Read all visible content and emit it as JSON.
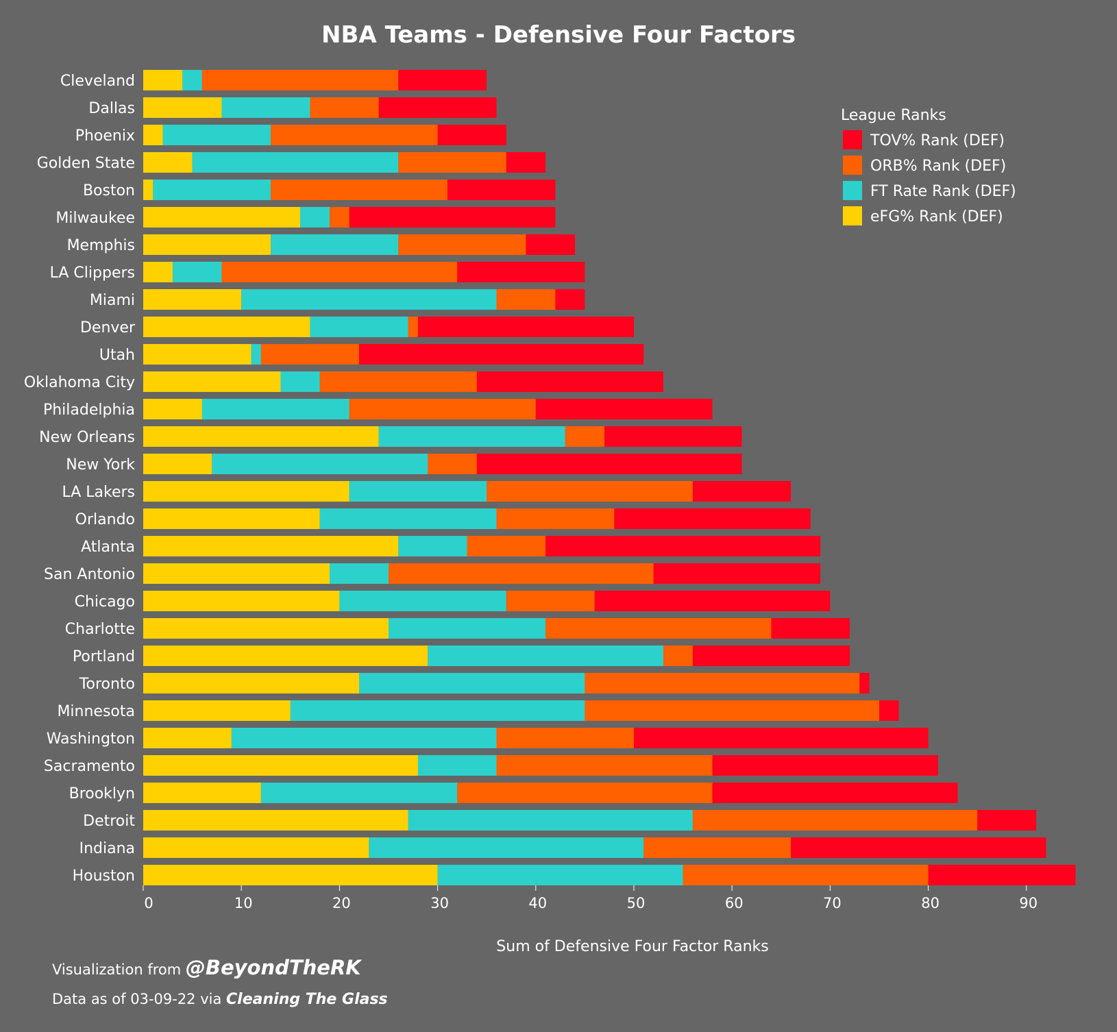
{
  "colors": {
    "background": "#666666",
    "tov": "#FF001E",
    "orb": "#FF6000",
    "ft": "#2DD1CC",
    "efg": "#FFD100"
  },
  "credits": {
    "line1_prefix": "Visualization from ",
    "line1_handle": "@BeyondTheRK",
    "line2_prefix": "Data as of 03-09-22 via ",
    "line2_source": "Cleaning The Glass"
  },
  "chart_data": {
    "type": "bar",
    "orientation": "horizontal",
    "stacked": true,
    "title": "NBA Teams - Defensive Four Factors",
    "xlabel": "Sum of Defensive Four Factor Ranks",
    "ylabel": "",
    "xlim": [
      0,
      95
    ],
    "xticks": [
      0,
      10,
      20,
      30,
      40,
      50,
      60,
      70,
      80,
      90
    ],
    "grid": false,
    "legend": {
      "title": "League Ranks",
      "position": "top-right",
      "entries": [
        "TOV% Rank (DEF)",
        "ORB% Rank (DEF)",
        "FT Rate Rank (DEF)",
        "eFG% Rank (DEF)"
      ]
    },
    "categories": [
      "Cleveland",
      "Dallas",
      "Phoenix",
      "Golden State",
      "Boston",
      "Milwaukee",
      "Memphis",
      "LA Clippers",
      "Miami",
      "Denver",
      "Utah",
      "Oklahoma City",
      "Philadelphia",
      "New Orleans",
      "New York",
      "LA Lakers",
      "Orlando",
      "Atlanta",
      "San Antonio",
      "Chicago",
      "Charlotte",
      "Portland",
      "Toronto",
      "Minnesota",
      "Washington",
      "Sacramento",
      "Brooklyn",
      "Detroit",
      "Indiana",
      "Houston"
    ],
    "series": [
      {
        "name": "eFG% Rank (DEF)",
        "color": "#FFD100",
        "values": [
          4,
          8,
          2,
          5,
          1,
          16,
          13,
          3,
          10,
          17,
          11,
          14,
          6,
          24,
          7,
          21,
          18,
          26,
          19,
          20,
          25,
          29,
          22,
          15,
          9,
          28,
          12,
          27,
          23,
          30
        ]
      },
      {
        "name": "FT Rate Rank (DEF)",
        "color": "#2DD1CC",
        "values": [
          2,
          9,
          11,
          21,
          12,
          3,
          13,
          5,
          26,
          10,
          1,
          4,
          15,
          19,
          22,
          14,
          18,
          7,
          6,
          17,
          16,
          24,
          23,
          30,
          27,
          8,
          20,
          29,
          28,
          25
        ]
      },
      {
        "name": "ORB% Rank (DEF)",
        "color": "#FF6000",
        "values": [
          20,
          7,
          17,
          11,
          18,
          2,
          13,
          24,
          6,
          1,
          10,
          16,
          19,
          4,
          5,
          21,
          12,
          8,
          27,
          9,
          23,
          3,
          28,
          30,
          14,
          22,
          26,
          29,
          15,
          25
        ]
      },
      {
        "name": "TOV% Rank (DEF)",
        "color": "#FF001E",
        "values": [
          9,
          12,
          7,
          4,
          11,
          21,
          5,
          13,
          3,
          22,
          29,
          19,
          18,
          14,
          27,
          10,
          20,
          28,
          17,
          24,
          8,
          16,
          1,
          2,
          30,
          23,
          25,
          6,
          26,
          15
        ]
      }
    ]
  }
}
